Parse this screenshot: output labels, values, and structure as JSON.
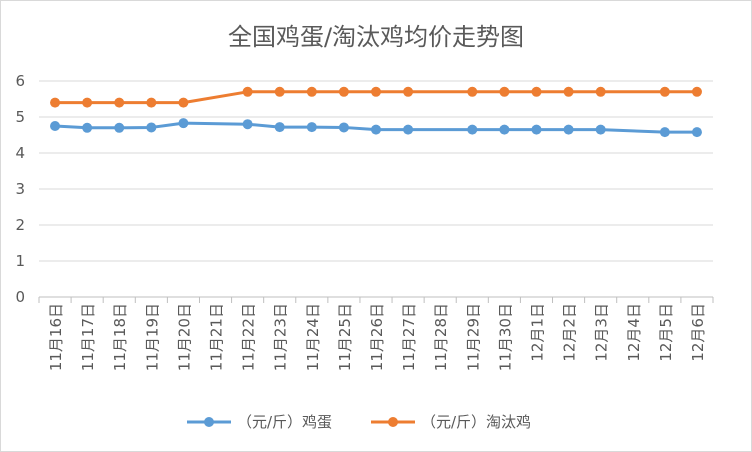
{
  "chart_data": {
    "type": "line",
    "title": "全国鸡蛋/淘汰鸡均价走势图",
    "categories": [
      "11月16日",
      "11月17日",
      "11月18日",
      "11月19日",
      "11月20日",
      "11月21日",
      "11月22日",
      "11月23日",
      "11月24日",
      "11月25日",
      "11月26日",
      "11月27日",
      "11月28日",
      "11月29日",
      "11月30日",
      "12月1日",
      "12月2日",
      "12月3日",
      "12月4日",
      "12月5日",
      "12月6日"
    ],
    "series": [
      {
        "name": "（元/斤）鸡蛋",
        "color": "#5B9BD5",
        "values": [
          4.75,
          4.7,
          4.7,
          4.71,
          4.83,
          null,
          4.8,
          4.72,
          4.72,
          4.71,
          4.65,
          4.65,
          null,
          4.65,
          4.65,
          4.65,
          4.65,
          4.65,
          null,
          4.58,
          4.58
        ]
      },
      {
        "name": "（元/斤）淘汰鸡",
        "color": "#ED7D31",
        "values": [
          5.4,
          5.4,
          5.4,
          5.4,
          5.4,
          null,
          5.7,
          5.7,
          5.7,
          5.7,
          5.7,
          5.7,
          null,
          5.7,
          5.7,
          5.7,
          5.7,
          5.7,
          null,
          5.7,
          5.7
        ]
      }
    ],
    "ylim": [
      0,
      6
    ],
    "yticks": [
      "0",
      "1",
      "2",
      "3",
      "4",
      "5",
      "6"
    ],
    "grid": true,
    "legend": "bottom"
  }
}
